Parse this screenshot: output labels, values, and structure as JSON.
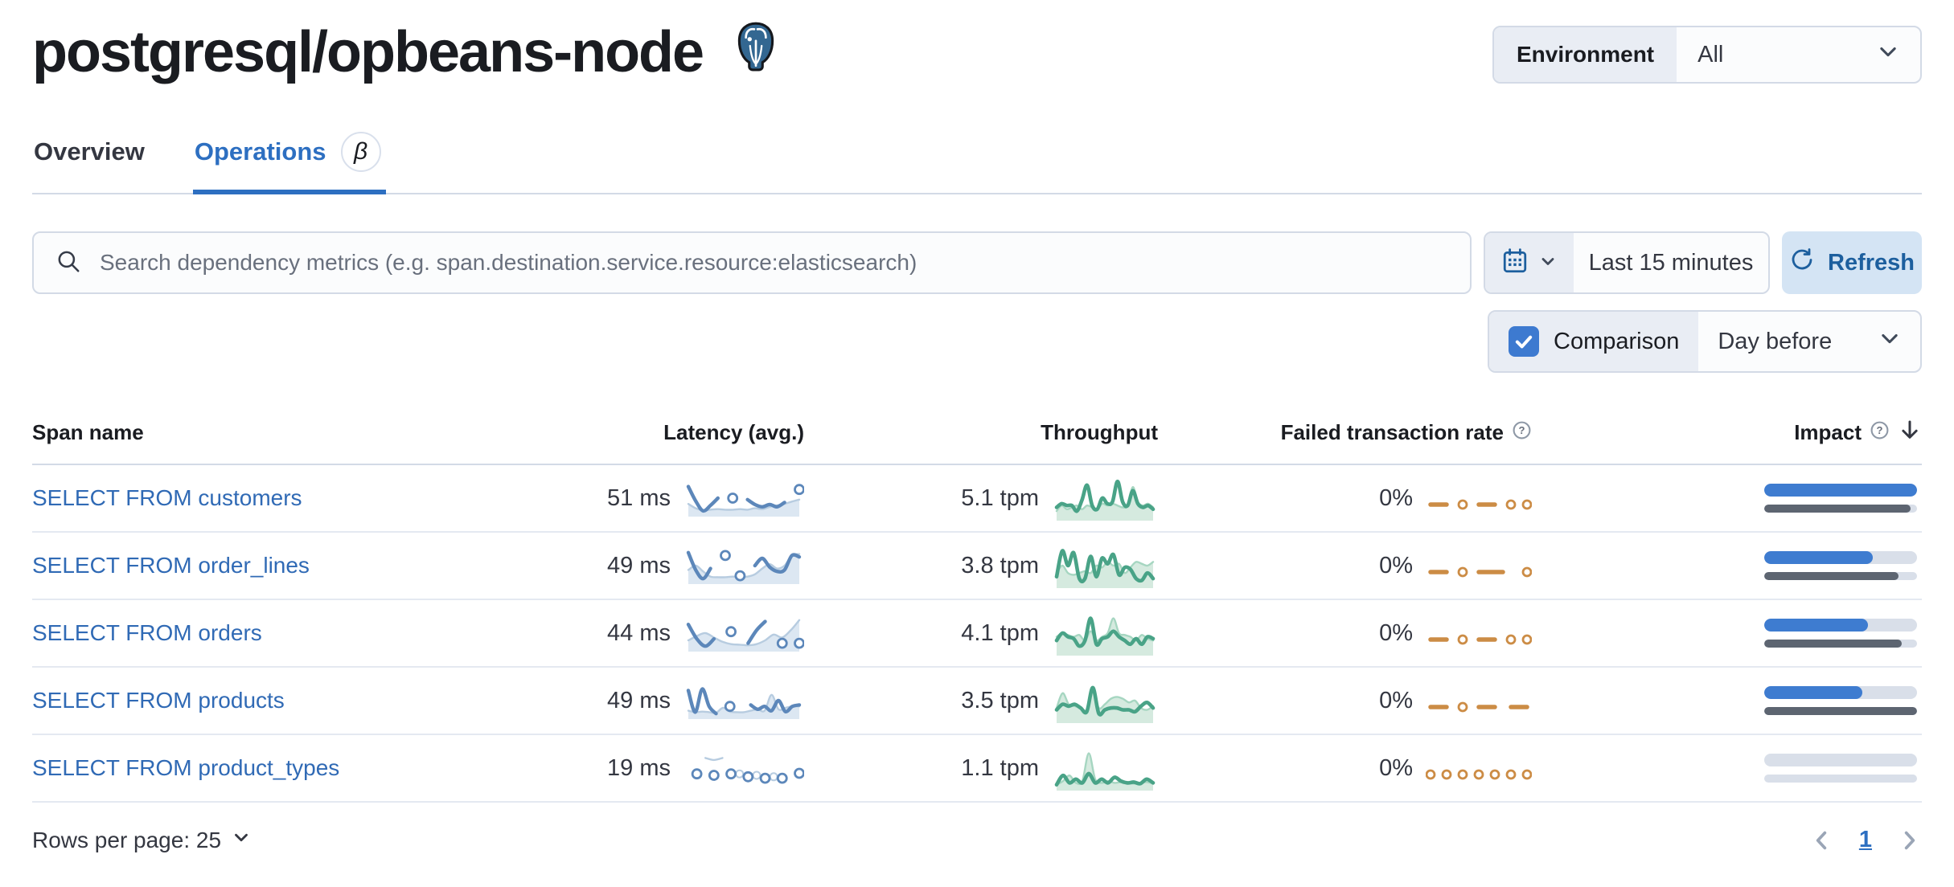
{
  "page": {
    "title": "postgresql/opbeans-node"
  },
  "environment": {
    "label": "Environment",
    "value": "All"
  },
  "tabs": [
    {
      "label": "Overview",
      "active": false
    },
    {
      "label": "Operations",
      "active": true,
      "badge": "β"
    }
  ],
  "search": {
    "placeholder": "Search dependency metrics (e.g. span.destination.service.resource:elasticsearch)"
  },
  "time_controls": {
    "range": "Last 15 minutes",
    "refresh_label": "Refresh"
  },
  "comparison": {
    "label": "Comparison",
    "value": "Day before",
    "checked": true
  },
  "table": {
    "columns": [
      "Span name",
      "Latency (avg.)",
      "Throughput",
      "Failed transaction rate",
      "Impact"
    ],
    "rows": [
      {
        "span_name": "SELECT FROM customers",
        "latency": "51 ms",
        "throughput": "5.1 tpm",
        "failed_rate": "0%",
        "impact": {
          "current_pct": 100,
          "previous_pct": 96
        },
        "latency_spark": {
          "current": [
            0.9,
            0.4,
            0.06,
            0.25,
            0.5,
            null,
            0.5,
            null,
            0.45,
            0.28,
            0.2,
            0.28,
            0.2,
            0.35,
            null,
            0.8
          ],
          "previous": [
            0.3,
            0.15,
            0.08,
            0.1,
            0.12,
            0.1,
            0.1,
            0.12,
            0.1,
            0.15,
            0.12,
            0.2,
            0.25,
            0.3,
            0.38,
            0.45
          ]
        },
        "throughput_spark": {
          "current": [
            0.25,
            0.35,
            0.3,
            0.3,
            0.15,
            0.45,
            0.85,
            0.3,
            0.2,
            0.5,
            0.35,
            0.4,
            0.95,
            0.4,
            0.3,
            0.7,
            0.35,
            0.25,
            0.3,
            0.2
          ],
          "previous": [
            0.15,
            0.3,
            0.2,
            0.25,
            0.3,
            0.2,
            0.3,
            0.25,
            0.2,
            0.35,
            0.3,
            0.35,
            0.3,
            0.25,
            0.3,
            0.8,
            0.4,
            0.3,
            0.35,
            0.25
          ]
        },
        "failed_spark": {
          "current": [
            0,
            0,
            0,
            null,
            0,
            null,
            0,
            0,
            0,
            null,
            0,
            null,
            0
          ]
        }
      },
      {
        "span_name": "SELECT FROM order_lines",
        "latency": "49 ms",
        "throughput": "3.8 tpm",
        "failed_rate": "0%",
        "impact": {
          "current_pct": 71,
          "previous_pct": 88
        },
        "latency_spark": {
          "current": [
            0.95,
            0.35,
            0.05,
            0.4,
            null,
            0.85,
            null,
            0.15,
            null,
            0.5,
            0.75,
            0.45,
            0.3,
            0.35,
            0.85,
            0.8
          ],
          "previous": [
            0.35,
            0.5,
            0.3,
            0.12,
            0.1,
            0.1,
            0.12,
            0.1,
            0.12,
            0.2,
            0.4,
            0.55,
            0.4,
            0.5,
            0.85,
            0.9
          ]
        },
        "throughput_spark": {
          "current": [
            0.2,
            0.9,
            0.5,
            0.85,
            0.15,
            0.15,
            0.75,
            0.2,
            0.7,
            0.55,
            0.8,
            0.25,
            0.45,
            0.4,
            0.15,
            0.1,
            0.3,
            0.15
          ],
          "previous": [
            0.3,
            0.5,
            0.3,
            0.25,
            0.3,
            0.35,
            0.3,
            0.5,
            0.45,
            0.6,
            0.5,
            0.55,
            0.3,
            0.45,
            0.6,
            0.55,
            0.5,
            0.6
          ]
        },
        "failed_spark": {
          "current": [
            0,
            0,
            0,
            null,
            0,
            null,
            0,
            0,
            0,
            0,
            null,
            null,
            0
          ]
        }
      },
      {
        "span_name": "SELECT FROM orders",
        "latency": "44 ms",
        "throughput": "4.1 tpm",
        "failed_rate": "0%",
        "impact": {
          "current_pct": 68,
          "previous_pct": 90
        },
        "latency_spark": {
          "current": [
            0.8,
            0.3,
            0.05,
            0.3,
            null,
            0.55,
            null,
            0.15,
            0.6,
            0.9,
            null,
            0.15,
            null,
            0.15
          ],
          "previous": [
            0.25,
            0.4,
            0.5,
            0.35,
            0.2,
            0.12,
            0.1,
            0.08,
            0.12,
            0.25,
            0.45,
            0.35,
            0.6,
            0.95
          ]
        },
        "throughput_spark": {
          "current": [
            0.3,
            0.5,
            0.4,
            0.35,
            0.15,
            0.3,
            0.9,
            0.2,
            0.35,
            0.4,
            0.55,
            0.4,
            0.3,
            0.2,
            0.35,
            0.2,
            0.4,
            0.35
          ],
          "previous": [
            0.4,
            0.5,
            0.45,
            0.4,
            0.45,
            0.3,
            0.55,
            0.3,
            0.4,
            0.5,
            0.9,
            0.5,
            0.45,
            0.4,
            0.3,
            0.45,
            0.35,
            0.3
          ]
        },
        "failed_spark": {
          "current": [
            0,
            0,
            0,
            null,
            0,
            null,
            0,
            0,
            0,
            null,
            0,
            null,
            0
          ]
        }
      },
      {
        "span_name": "SELECT FROM products",
        "latency": "49 ms",
        "throughput": "3.5 tpm",
        "failed_rate": "0%",
        "impact": {
          "current_pct": 64,
          "previous_pct": 100
        },
        "latency_spark": {
          "current": [
            0.85,
            0.1,
            0.9,
            0.3,
            0.05,
            null,
            0.3,
            null,
            null,
            0.35,
            0.2,
            0.3,
            0.15,
            0.5,
            0.12,
            0.3,
            0.35
          ],
          "previous": [
            0.15,
            0.1,
            0.12,
            0.1,
            0.08,
            0.25,
            0.12,
            0.1,
            0.1,
            0.15,
            0.2,
            0.15,
            0.7,
            0.2,
            0.25,
            0.3,
            0.3
          ]
        },
        "throughput_spark": {
          "current": [
            0.25,
            0.4,
            0.35,
            0.4,
            0.3,
            0.2,
            0.85,
            0.15,
            0.25,
            0.3,
            0.3,
            0.25,
            0.25,
            0.2,
            0.35,
            0.45,
            0.3
          ],
          "previous": [
            0.3,
            0.7,
            0.4,
            0.35,
            0.3,
            0.25,
            0.75,
            0.3,
            0.4,
            0.55,
            0.6,
            0.55,
            0.45,
            0.5,
            0.3,
            0.25,
            0.35
          ]
        },
        "failed_spark": {
          "current": [
            0,
            0,
            0,
            null,
            0,
            null,
            0,
            0,
            0,
            null,
            0,
            0,
            0
          ]
        }
      },
      {
        "span_name": "SELECT FROM product_types",
        "latency": "19 ms",
        "throughput": "1.1 tpm",
        "failed_rate": "0%",
        "impact": {
          "current_pct": 0,
          "previous_pct": 0
        },
        "latency_spark": {
          "current": [
            null,
            0.3,
            null,
            0.25,
            null,
            0.3,
            null,
            0.2,
            null,
            0.15,
            null,
            0.15,
            null,
            0.32
          ],
          "previous": [
            null,
            null,
            0.85,
            0.78,
            0.85,
            null,
            0.3,
            null,
            0.25,
            null,
            0.2,
            null,
            null,
            null
          ],
          "previous_fill": false
        },
        "throughput_spark": {
          "current": [
            0.05,
            0.3,
            0.1,
            0.2,
            0.1,
            0.35,
            0.1,
            0.2,
            0.1,
            0.25,
            0.15,
            0.1,
            0.12,
            0.08,
            0.2,
            0.1
          ],
          "previous": [
            0.05,
            0.15,
            0.3,
            0.1,
            0.15,
            0.9,
            0.2,
            0.1,
            0.15,
            0.1,
            0.12,
            0.1,
            0.08,
            0.1,
            0.12,
            0.08
          ]
        },
        "failed_spark": {
          "current": [
            0,
            null,
            0,
            null,
            0,
            null,
            0,
            null,
            0,
            null,
            0,
            null,
            0
          ]
        }
      }
    ]
  },
  "footer": {
    "rows_per_page": "Rows per page: 25",
    "page": "1"
  },
  "colors": {
    "accent_blue": "#2d6fc1",
    "link_blue": "#306ab5",
    "refresh_blue": "#1d5f9e",
    "latency_line": "#5c87ba",
    "latency_prev_line": "#b7cce0",
    "latency_prev_fill": "#dce7f2",
    "throughput_line": "#49a387",
    "throughput_prev_line": "#a6d6c1",
    "throughput_prev_fill": "#d5eadf",
    "failed_line": "#cc8c45",
    "impact_bar": "#3e7cd0",
    "impact_prev_bar": "#5d6571",
    "impact_track": "#d9dfe9",
    "postgres_blue": "#336791"
  }
}
